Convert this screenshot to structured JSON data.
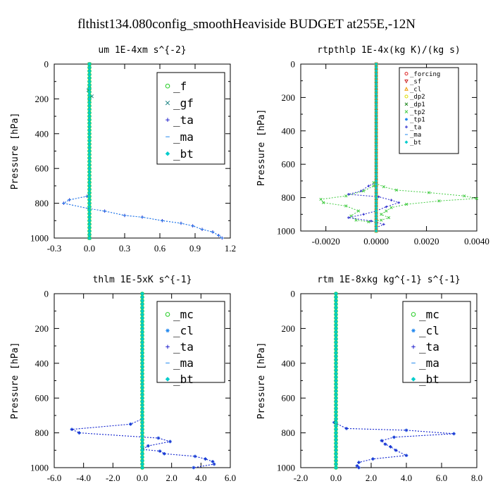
{
  "figure_title": "flthist134.080config_smoothHeaviside  BUDGET at255E,-12N",
  "chart_data": [
    {
      "type": "line",
      "title": "um  1E-4xm s^{-2}",
      "ylabel": "Pressure [hPa]",
      "xlim": [
        -0.3,
        1.2
      ],
      "ylim": [
        0,
        1000
      ],
      "y_inverted": true,
      "xticks": [
        "-0.3",
        "0.0",
        "0.3",
        "0.6",
        "0.9",
        "1.2"
      ],
      "yticks": [
        "0",
        "200",
        "400",
        "600",
        "800",
        "1000"
      ],
      "legend_position": "top-right",
      "legend_size": "large",
      "pressure_levels": [
        0,
        20,
        40,
        60,
        80,
        100,
        120,
        140,
        160,
        180,
        200,
        220,
        240,
        260,
        280,
        300,
        320,
        340,
        360,
        380,
        400,
        420,
        440,
        460,
        480,
        500,
        520,
        540,
        560,
        580,
        600,
        620,
        640,
        660,
        680,
        700,
        720,
        740,
        760,
        780,
        800,
        820,
        840,
        860,
        880,
        900,
        920,
        940,
        960,
        980,
        1000
      ],
      "series": [
        {
          "name": "_f",
          "color": "#22cc22",
          "marker": "circle",
          "points": [
            [
              0,
              0
            ],
            [
              0,
              1000
            ]
          ]
        },
        {
          "name": "_gf",
          "color": "#228888",
          "marker": "x",
          "points": [
            [
              0,
              0
            ],
            [
              0,
              140
            ],
            [
              -0.01,
              150
            ],
            [
              0.02,
              185
            ],
            [
              0,
              200
            ],
            [
              0,
              1000
            ]
          ]
        },
        {
          "name": "_ta",
          "color": "#2222cc",
          "marker": "plus",
          "points": [
            [
              0,
              0
            ],
            [
              0,
              740
            ],
            [
              -0.02,
              760
            ],
            [
              -0.17,
              780
            ],
            [
              -0.22,
              800
            ],
            [
              -0.01,
              830
            ],
            [
              0.13,
              845
            ],
            [
              0.3,
              870
            ],
            [
              0.45,
              880
            ],
            [
              0.62,
              900
            ],
            [
              0.78,
              915
            ],
            [
              0.88,
              930
            ],
            [
              0.96,
              950
            ],
            [
              1.05,
              965
            ],
            [
              1.1,
              985
            ],
            [
              1.13,
              1000
            ]
          ]
        },
        {
          "name": "_ma",
          "color": "#2288ee",
          "marker": "dash",
          "points": [
            [
              0,
              0
            ],
            [
              0,
              740
            ],
            [
              -0.02,
              760
            ],
            [
              -0.17,
              780
            ],
            [
              -0.22,
              800
            ],
            [
              -0.01,
              830
            ],
            [
              0.13,
              845
            ],
            [
              0.3,
              870
            ],
            [
              0.45,
              880
            ],
            [
              0.62,
              900
            ],
            [
              0.78,
              915
            ],
            [
              0.88,
              930
            ],
            [
              0.96,
              950
            ],
            [
              1.05,
              965
            ],
            [
              1.1,
              985
            ],
            [
              1.13,
              1000
            ]
          ]
        },
        {
          "name": "_bt",
          "color": "#00cccc",
          "marker": "diamond",
          "points": [
            [
              0,
              0
            ],
            [
              0,
              1000
            ]
          ]
        }
      ]
    },
    {
      "type": "line",
      "title": "rtpthlp  1E-4x(kg K)/(kg s)",
      "ylabel": "Pressure [hPa]",
      "xlim": [
        -0.003,
        0.004
      ],
      "ylim": [
        0,
        1000
      ],
      "y_inverted": true,
      "xticks": [
        "-0.0020",
        "0.0000",
        "0.0020",
        "0.0040"
      ],
      "xtick_values": [
        -0.002,
        0,
        0.002,
        0.004
      ],
      "yticks": [
        "0",
        "200",
        "400",
        "600",
        "800",
        "1000"
      ],
      "legend_position": "top-right",
      "legend_size": "small",
      "series": [
        {
          "name": "_forcing",
          "color": "#dd2222",
          "marker": "circle",
          "points": [
            [
              0,
              0
            ],
            [
              0,
              1000
            ]
          ]
        },
        {
          "name": "_sf",
          "color": "#cc2222",
          "marker": "triangle-down",
          "points": [
            [
              0,
              0
            ],
            [
              0,
              1000
            ]
          ]
        },
        {
          "name": "_cl",
          "color": "#ee9900",
          "marker": "triangle",
          "points": [
            [
              0,
              0
            ],
            [
              0,
              1000
            ]
          ]
        },
        {
          "name": "_dp2",
          "color": "#dddd00",
          "marker": "circle",
          "points": [
            [
              0,
              0
            ],
            [
              0,
              1000
            ]
          ]
        },
        {
          "name": "_dp1",
          "color": "#228822",
          "marker": "x",
          "points": [
            [
              0,
              0
            ],
            [
              0,
              1000
            ]
          ]
        },
        {
          "name": "_tp2",
          "color": "#44cc44",
          "marker": "x",
          "points": [
            [
              0,
              0
            ],
            [
              0,
              690
            ],
            [
              -0.0001,
              710
            ],
            [
              0.0003,
              735
            ],
            [
              0.0008,
              755
            ],
            [
              0.0021,
              770
            ],
            [
              0.0035,
              790
            ],
            [
              0.004,
              805
            ],
            [
              0.0025,
              820
            ],
            [
              0.0012,
              840
            ],
            [
              0.0006,
              860
            ],
            [
              0.0004,
              880
            ],
            [
              0.0002,
              900
            ],
            [
              0.0005,
              920
            ],
            [
              0.0002,
              935
            ],
            [
              -0.0003,
              945
            ],
            [
              -0.0008,
              935
            ],
            [
              -0.001,
              910
            ],
            [
              -0.0007,
              880
            ],
            [
              -0.0012,
              850
            ],
            [
              -0.0021,
              830
            ],
            [
              -0.0022,
              810
            ],
            [
              -0.0012,
              790
            ],
            [
              -0.0005,
              760
            ],
            [
              -0.0001,
              730
            ],
            [
              0,
              700
            ],
            [
              0,
              1000
            ]
          ]
        },
        {
          "name": "_tp1",
          "color": "#2288ee",
          "marker": "star",
          "points": [
            [
              0,
              0
            ],
            [
              0,
              1000
            ]
          ]
        },
        {
          "name": "_ta",
          "color": "#2222cc",
          "marker": "plus",
          "points": [
            [
              0,
              0
            ],
            [
              0,
              710
            ],
            [
              -0.0003,
              730
            ],
            [
              -0.0006,
              760
            ],
            [
              -0.0011,
              780
            ],
            [
              0.0001,
              795
            ],
            [
              0.0006,
              815
            ],
            [
              0.0009,
              830
            ],
            [
              0.0004,
              855
            ],
            [
              0,
              880
            ],
            [
              -0.0005,
              900
            ],
            [
              -0.0011,
              920
            ],
            [
              -0.0002,
              940
            ],
            [
              0.0003,
              960
            ],
            [
              0,
              980
            ],
            [
              0,
              1000
            ]
          ]
        },
        {
          "name": "_ma",
          "color": "#2288ee",
          "marker": "dash",
          "points": [
            [
              0,
              0
            ],
            [
              0,
              1000
            ]
          ]
        },
        {
          "name": "_bt",
          "color": "#00cccc",
          "marker": "diamond",
          "points": [
            [
              0,
              0
            ],
            [
              0,
              1000
            ]
          ]
        }
      ]
    },
    {
      "type": "line",
      "title": "thlm  1E-5xK s^{-1}",
      "ylabel": "Pressure [hPa]",
      "xlim": [
        -6.0,
        6.0
      ],
      "ylim": [
        0,
        1000
      ],
      "y_inverted": true,
      "xticks": [
        "-6.0",
        "-4.0",
        "-2.0",
        "0.0",
        "2.0",
        "4.0",
        "6.0"
      ],
      "yticks": [
        "0",
        "200",
        "400",
        "600",
        "800",
        "1000"
      ],
      "legend_position": "top-right",
      "legend_size": "large",
      "series": [
        {
          "name": "_mc",
          "color": "#22cc22",
          "marker": "circle",
          "points": [
            [
              0,
              0
            ],
            [
              0,
              1000
            ]
          ]
        },
        {
          "name": "_cl",
          "color": "#2288ee",
          "marker": "star",
          "points": [
            [
              0,
              0
            ],
            [
              0,
              720
            ],
            [
              -0.8,
              750
            ],
            [
              -4.8,
              780
            ],
            [
              -4.3,
              800
            ],
            [
              1.1,
              830
            ],
            [
              1.9,
              850
            ],
            [
              0.4,
              875
            ],
            [
              0,
              895
            ],
            [
              1.2,
              905
            ],
            [
              1.5,
              920
            ],
            [
              3.6,
              935
            ],
            [
              4.3,
              950
            ],
            [
              4.8,
              965
            ],
            [
              4.9,
              980
            ],
            [
              3.5,
              1000
            ]
          ]
        },
        {
          "name": "_ta",
          "color": "#2222cc",
          "marker": "plus",
          "points": [
            [
              0,
              0
            ],
            [
              0,
              720
            ],
            [
              -0.8,
              750
            ],
            [
              -4.8,
              780
            ],
            [
              -4.3,
              800
            ],
            [
              1.1,
              830
            ],
            [
              1.9,
              850
            ],
            [
              0.4,
              875
            ],
            [
              0,
              895
            ],
            [
              1.2,
              905
            ],
            [
              1.5,
              920
            ],
            [
              3.6,
              935
            ],
            [
              4.3,
              950
            ],
            [
              4.8,
              965
            ],
            [
              4.9,
              980
            ],
            [
              3.5,
              1000
            ]
          ]
        },
        {
          "name": "_ma",
          "color": "#2288ee",
          "marker": "dash",
          "points": [
            [
              0,
              0
            ],
            [
              0,
              1000
            ]
          ]
        },
        {
          "name": "_bt",
          "color": "#00cccc",
          "marker": "diamond",
          "points": [
            [
              0,
              0
            ],
            [
              0,
              1000
            ]
          ]
        }
      ]
    },
    {
      "type": "line",
      "title": "rtm  1E-8xkg kg^{-1} s^{-1}",
      "ylabel": "Pressure [hPa]",
      "xlim": [
        -2.0,
        8.0
      ],
      "ylim": [
        0,
        1000
      ],
      "y_inverted": true,
      "xticks": [
        "-2.0",
        "0.0",
        "2.0",
        "4.0",
        "6.0",
        "8.0"
      ],
      "yticks": [
        "0",
        "200",
        "400",
        "600",
        "800",
        "1000"
      ],
      "legend_position": "top-right",
      "legend_size": "large",
      "series": [
        {
          "name": "_mc",
          "color": "#22cc22",
          "marker": "circle",
          "points": [
            [
              0,
              0
            ],
            [
              0,
              1000
            ]
          ]
        },
        {
          "name": "_cl",
          "color": "#2288ee",
          "marker": "star",
          "points": [
            [
              0,
              0
            ],
            [
              0,
              720
            ],
            [
              -0.1,
              740
            ],
            [
              0.6,
              775
            ],
            [
              4.0,
              785
            ],
            [
              6.7,
              805
            ],
            [
              3.3,
              825
            ],
            [
              2.6,
              845
            ],
            [
              2.8,
              865
            ],
            [
              3.1,
              880
            ],
            [
              3.4,
              900
            ],
            [
              4.0,
              930
            ],
            [
              2.1,
              950
            ],
            [
              1.3,
              970
            ],
            [
              1.2,
              990
            ],
            [
              1.3,
              1000
            ]
          ]
        },
        {
          "name": "_ta",
          "color": "#2222cc",
          "marker": "plus",
          "points": [
            [
              0,
              0
            ],
            [
              0,
              720
            ],
            [
              -0.1,
              740
            ],
            [
              0.6,
              775
            ],
            [
              4.0,
              785
            ],
            [
              6.7,
              805
            ],
            [
              3.3,
              825
            ],
            [
              2.6,
              845
            ],
            [
              2.8,
              865
            ],
            [
              3.1,
              880
            ],
            [
              3.4,
              900
            ],
            [
              4.0,
              930
            ],
            [
              2.1,
              950
            ],
            [
              1.3,
              970
            ],
            [
              1.2,
              990
            ],
            [
              1.3,
              1000
            ]
          ]
        },
        {
          "name": "_ma",
          "color": "#2288ee",
          "marker": "dash",
          "points": [
            [
              0,
              0
            ],
            [
              0,
              1000
            ]
          ]
        },
        {
          "name": "_bt",
          "color": "#00cccc",
          "marker": "diamond",
          "points": [
            [
              0,
              0
            ],
            [
              0,
              1000
            ]
          ]
        }
      ]
    }
  ]
}
